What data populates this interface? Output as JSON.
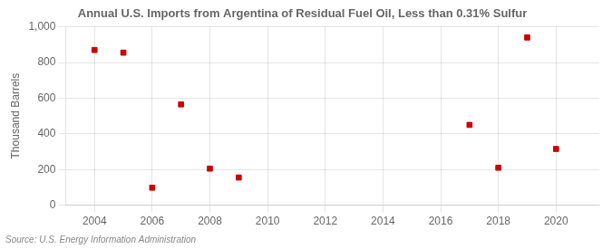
{
  "chart_data": {
    "type": "scatter",
    "title": "Annual U.S. Imports from Argentina of Residual Fuel Oil, Less than 0.31% Sulfur",
    "ylabel": "Thousand Barrels",
    "source": "Source: U.S. Energy Information Administration",
    "x": [
      2004,
      2005,
      2006,
      2007,
      2008,
      2009,
      2017,
      2018,
      2019,
      2020
    ],
    "values": [
      870,
      855,
      98,
      565,
      205,
      155,
      450,
      210,
      940,
      315
    ],
    "color": "#cc0000",
    "marker": "square",
    "xlim": [
      2003.0,
      2021.5
    ],
    "ylim": [
      0,
      1000
    ],
    "xticks": [
      2004,
      2006,
      2008,
      2010,
      2012,
      2014,
      2016,
      2018,
      2020
    ],
    "yticks": [
      0,
      200,
      400,
      600,
      800,
      {
        "value": 1000,
        "label": "1,000"
      }
    ],
    "grid": true
  }
}
